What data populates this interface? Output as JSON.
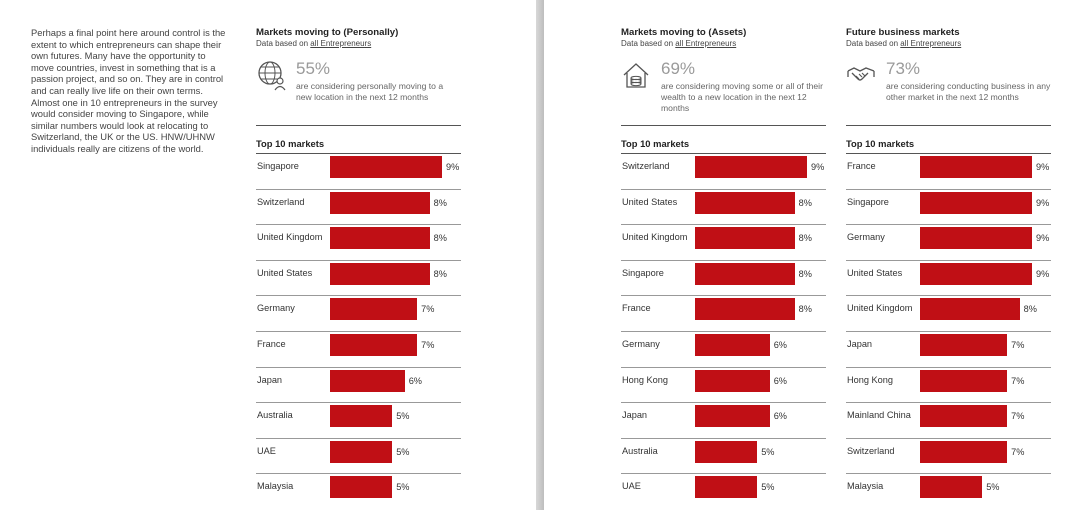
{
  "intro_text": "Perhaps a final point here around control is the extent to which entrepreneurs can shape their own futures. Many have the opportunity to move countries, invest in something that is a passion project, and so on. They are in control and can really live life on their own terms. Almost one in 10 entrepreneurs in the survey would consider moving to Singapore, while similar numbers would look at relocating to Switzerland, the UK or the US. HNW/UHNW individuals really are citizens of the world.",
  "colors": {
    "bar": "#c00f15",
    "stat_number": "#9a9a9a"
  },
  "chart_data": [
    {
      "type": "bar",
      "title": "Markets moving to (Personally)",
      "subtitle_prefix": "Data based on",
      "subtitle_link": "all Entrepreneurs",
      "icon": "globe-person-icon",
      "stat_value": "55%",
      "stat_text": "are considering personally moving to a new location in the next 12 months",
      "list_title": "Top 10 markets",
      "categories": [
        "Singapore",
        "Switzerland",
        "United Kingdom",
        "United States",
        "Germany",
        "France",
        "Japan",
        "Australia",
        "UAE",
        "Malaysia"
      ],
      "values": [
        9,
        8,
        8,
        8,
        7,
        7,
        6,
        5,
        5,
        5
      ],
      "value_labels": [
        "9%",
        "8%",
        "8%",
        "8%",
        "7%",
        "7%",
        "6%",
        "5%",
        "5%",
        "5%"
      ],
      "unit": "%",
      "xlim": [
        0,
        9
      ]
    },
    {
      "type": "bar",
      "title": "Markets moving to (Assets)",
      "subtitle_prefix": "Data based on",
      "subtitle_link": "all Entrepreneurs",
      "icon": "house-coins-icon",
      "stat_value": "69%",
      "stat_text": "are considering moving some or all of their wealth to a new location in the next 12 months",
      "list_title": "Top 10 markets",
      "categories": [
        "Switzerland",
        "United States",
        "United Kingdom",
        "Singapore",
        "France",
        "Germany",
        "Hong Kong",
        "Japan",
        "Australia",
        "UAE"
      ],
      "values": [
        9,
        8,
        8,
        8,
        8,
        6,
        6,
        6,
        5,
        5
      ],
      "value_labels": [
        "9%",
        "8%",
        "8%",
        "8%",
        "8%",
        "6%",
        "6%",
        "6%",
        "5%",
        "5%"
      ],
      "unit": "%",
      "xlim": [
        0,
        9
      ]
    },
    {
      "type": "bar",
      "title": "Future business markets",
      "subtitle_prefix": "Data based on",
      "subtitle_link": "all Entrepreneurs",
      "icon": "handshake-icon",
      "stat_value": "73%",
      "stat_text": "are considering conducting business in any other market in the next 12 months",
      "list_title": "Top 10 markets",
      "categories": [
        "France",
        "Singapore",
        "Germany",
        "United States",
        "United Kingdom",
        "Japan",
        "Hong Kong",
        "Mainland China",
        "Switzerland",
        "Malaysia"
      ],
      "values": [
        9,
        9,
        9,
        9,
        8,
        7,
        7,
        7,
        7,
        5
      ],
      "value_labels": [
        "9%",
        "9%",
        "9%",
        "9%",
        "8%",
        "7%",
        "7%",
        "7%",
        "7%",
        "5%"
      ],
      "unit": "%",
      "xlim": [
        0,
        9
      ]
    }
  ]
}
